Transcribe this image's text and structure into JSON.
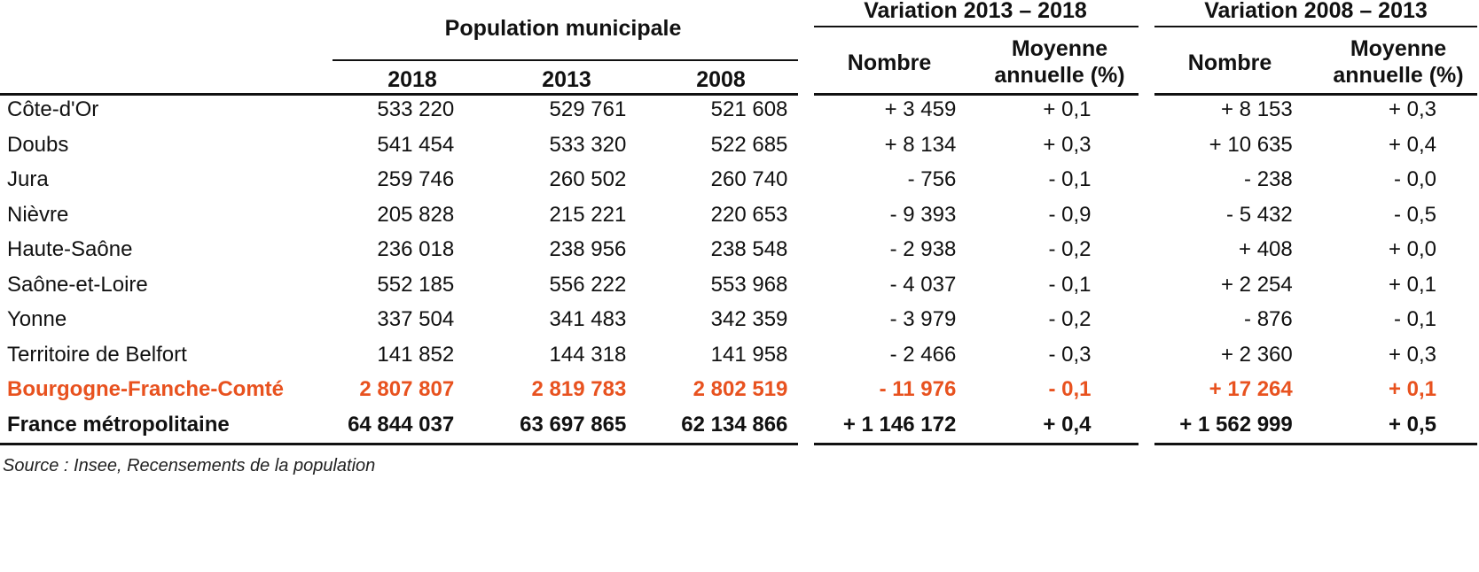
{
  "headers": {
    "population_group": "Population municipale",
    "variation_2013_2018": "Variation 2013 – 2018",
    "variation_2008_2013": "Variation 2008 – 2013",
    "year_2018": "2018",
    "year_2013": "2013",
    "year_2008": "2008",
    "nombre_1": "Nombre",
    "moyenne_1_line1": "Moyenne",
    "moyenne_1_line2": "annuelle (%)",
    "nombre_2": "Nombre",
    "moyenne_2_line1": "Moyenne",
    "moyenne_2_line2": "annuelle (%)"
  },
  "rows": [
    {
      "name": "Côte-d'Or",
      "p2018": "533 220",
      "p2013": "529 761",
      "p2008": "521 608",
      "n1": "+ 3 459",
      "m1": "+ 0,1",
      "n2": "+ 8 153",
      "m2": "+ 0,3"
    },
    {
      "name": "Doubs",
      "p2018": "541 454",
      "p2013": "533 320",
      "p2008": "522 685",
      "n1": "+ 8 134",
      "m1": "+ 0,3",
      "n2": "+ 10 635",
      "m2": "+ 0,4"
    },
    {
      "name": "Jura",
      "p2018": "259 746",
      "p2013": "260 502",
      "p2008": "260 740",
      "n1": "- 756",
      "m1": "- 0,1",
      "n2": "- 238",
      "m2": "- 0,0"
    },
    {
      "name": "Nièvre",
      "p2018": "205 828",
      "p2013": "215 221",
      "p2008": "220 653",
      "n1": "- 9 393",
      "m1": "- 0,9",
      "n2": "- 5 432",
      "m2": "- 0,5"
    },
    {
      "name": "Haute-Saône",
      "p2018": "236 018",
      "p2013": "238 956",
      "p2008": "238 548",
      "n1": "- 2 938",
      "m1": "- 0,2",
      "n2": "+ 408",
      "m2": "+ 0,0"
    },
    {
      "name": "Saône-et-Loire",
      "p2018": "552 185",
      "p2013": "556 222",
      "p2008": "553 968",
      "n1": "- 4 037",
      "m1": "- 0,1",
      "n2": "+ 2 254",
      "m2": "+ 0,1"
    },
    {
      "name": "Yonne",
      "p2018": "337 504",
      "p2013": "341 483",
      "p2008": "342 359",
      "n1": "- 3 979",
      "m1": "- 0,2",
      "n2": "- 876",
      "m2": "- 0,1"
    },
    {
      "name": "Territoire de Belfort",
      "p2018": "141 852",
      "p2013": "144 318",
      "p2008": "141 958",
      "n1": "- 2 466",
      "m1": "- 0,3",
      "n2": "+ 2 360",
      "m2": "+ 0,3"
    },
    {
      "name": "Bourgogne-Franche-Comté",
      "p2018": "2 807 807",
      "p2013": "2 819 783",
      "p2008": "2 802 519",
      "n1": "- 11 976",
      "m1": "- 0,1",
      "n2": "+ 17 264",
      "m2": "+ 0,1"
    },
    {
      "name": "France métropolitaine",
      "p2018": "64 844 037",
      "p2013": "63 697 865",
      "p2008": "62 134 866",
      "n1": "+ 1 146 172",
      "m1": "+ 0,4",
      "n2": "+ 1 562 999",
      "m2": "+ 0,5"
    }
  ],
  "source": "Source : Insee, Recensements de la population",
  "colors": {
    "highlight": "#e8521f",
    "text": "#111111"
  }
}
